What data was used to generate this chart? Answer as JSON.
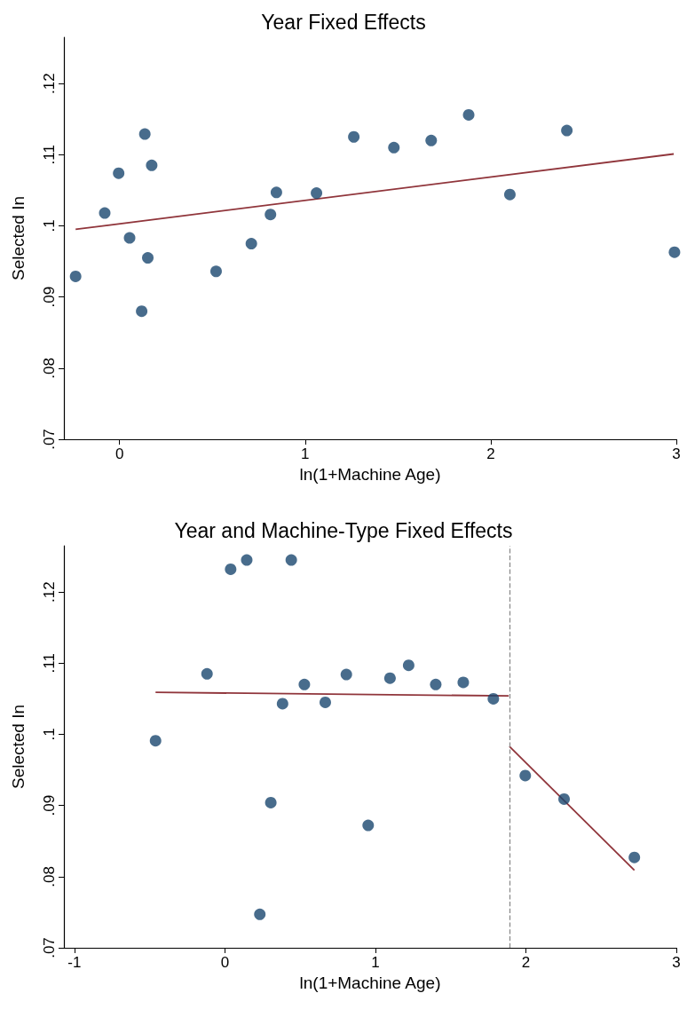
{
  "chart_data": [
    {
      "type": "scatter",
      "title": "Year Fixed Effects",
      "xlabel": "ln(1+Machine Age)",
      "ylabel": "Selected In",
      "xlim": [
        -0.3,
        3.0
      ],
      "xticks": [
        0,
        1,
        2,
        3
      ],
      "ylim": [
        0.07,
        0.1265
      ],
      "yticks": [
        {
          "value": 0.07,
          "label": ".07"
        },
        {
          "value": 0.08,
          "label": ".08"
        },
        {
          "value": 0.09,
          "label": ".09"
        },
        {
          "value": 0.1,
          "label": ".1"
        },
        {
          "value": 0.11,
          "label": ".11"
        },
        {
          "value": 0.12,
          "label": ".12"
        }
      ],
      "grid": false,
      "series": [
        {
          "marker": "circle",
          "color": "#1a476f",
          "x": [
            -0.237,
            -0.08,
            -0.005,
            0.054,
            0.136,
            0.119,
            0.152,
            0.173,
            0.52,
            0.71,
            0.813,
            0.845,
            1.061,
            1.262,
            1.478,
            1.679,
            1.881,
            2.103,
            2.41,
            2.99
          ],
          "values": [
            0.0929,
            0.1018,
            0.1074,
            0.0983,
            0.1129,
            0.088,
            0.0955,
            0.1085,
            0.0936,
            0.0975,
            0.1016,
            0.1047,
            0.1046,
            0.1125,
            0.111,
            0.112,
            0.1156,
            0.1044,
            0.1134,
            0.0963
          ]
        },
        {
          "type": "line",
          "marker": "none",
          "line_style": "solid",
          "color": "#90353b",
          "x": [
            -0.237,
            2.986
          ],
          "values": [
            0.0995,
            0.1101
          ]
        }
      ]
    },
    {
      "type": "scatter",
      "title": "Year and Machine-Type Fixed Effects",
      "xlabel": "ln(1+Machine Age)",
      "ylabel": "Selected In",
      "xlim": [
        -1.07,
        3.0
      ],
      "xticks": [
        -1,
        0,
        1,
        2,
        3
      ],
      "ylim": [
        0.07,
        0.1265
      ],
      "yticks": [
        {
          "value": 0.07,
          "label": ".07"
        },
        {
          "value": 0.08,
          "label": ".08"
        },
        {
          "value": 0.09,
          "label": ".09"
        },
        {
          "value": 0.1,
          "label": ".1"
        },
        {
          "value": 0.11,
          "label": ".11"
        },
        {
          "value": 0.12,
          "label": ".12"
        }
      ],
      "grid": false,
      "ref_lines": [
        {
          "axis": "x",
          "value": 1.89,
          "color": "#8c8c8c",
          "line_style": "dashed"
        }
      ],
      "series": [
        {
          "marker": "circle",
          "color": "#1a476f",
          "x": [
            -0.461,
            -0.119,
            0.038,
            0.145,
            0.441,
            0.232,
            0.305,
            0.383,
            0.528,
            0.667,
            0.807,
            0.952,
            1.097,
            1.221,
            1.401,
            1.584,
            1.784,
            1.996,
            2.254,
            2.721
          ],
          "values": [
            0.0991,
            0.1085,
            0.1232,
            0.1245,
            0.1245,
            0.0747,
            0.0904,
            0.1043,
            0.107,
            0.1045,
            0.1084,
            0.0872,
            0.1079,
            0.1097,
            0.107,
            0.1073,
            0.105,
            0.0942,
            0.0909,
            0.0827
          ]
        },
        {
          "type": "line",
          "marker": "none",
          "line_style": "solid",
          "color": "#90353b",
          "x": [
            -0.461,
            1.886
          ],
          "values": [
            0.1059,
            0.1054
          ]
        },
        {
          "type": "line",
          "marker": "none",
          "line_style": "solid",
          "color": "#90353b",
          "x": [
            1.891,
            2.721
          ],
          "values": [
            0.0983,
            0.0809
          ]
        }
      ]
    }
  ]
}
